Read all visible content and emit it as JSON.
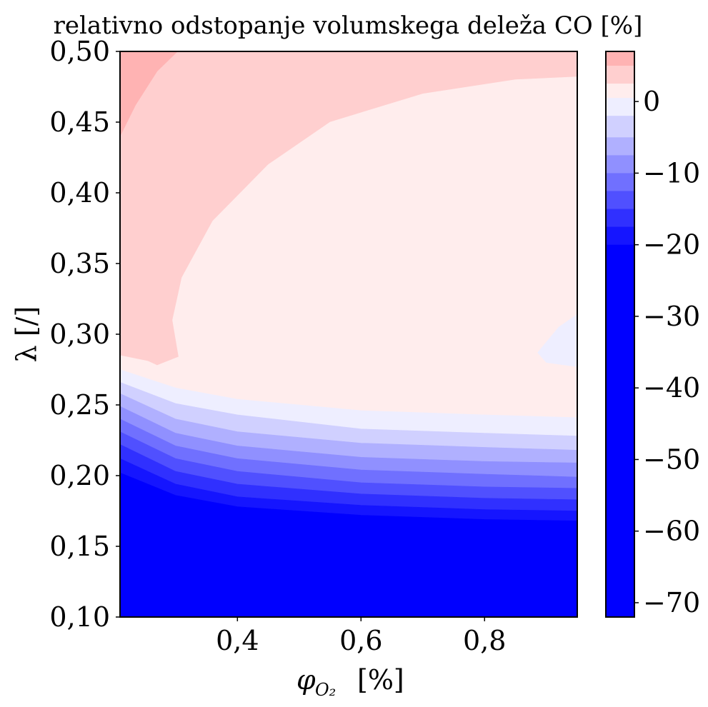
{
  "chart_data": {
    "type": "heatmap",
    "subtype": "filled-contour",
    "title": "relativno odstopanje volumskega deleža CO [%]",
    "xlabel": "φ_O₂ [%]",
    "xlabel_main": "φ",
    "xlabel_sub": "O₂",
    "xlabel_unit": "[%]",
    "ylabel": "λ [/]",
    "xlim": [
      0.21,
      0.95
    ],
    "ylim": [
      0.1,
      0.5
    ],
    "x_ticks": [
      0.4,
      0.6,
      0.8
    ],
    "x_tick_labels": [
      "0,4",
      "0,6",
      "0,8"
    ],
    "y_ticks": [
      0.1,
      0.15,
      0.2,
      0.25,
      0.3,
      0.35,
      0.4,
      0.45,
      0.5
    ],
    "y_tick_labels": [
      "0,10",
      "0,15",
      "0,20",
      "0,25",
      "0,30",
      "0,35",
      "0,40",
      "0,45",
      "0,50"
    ],
    "grid": false,
    "colorbar": {
      "position": "right",
      "range": [
        -72,
        7
      ],
      "ticks": [
        0,
        -10,
        -20,
        -30,
        -40,
        -50,
        -60,
        -70
      ],
      "tick_labels": [
        "0",
        "−10",
        "−20",
        "−30",
        "−40",
        "−50",
        "−60",
        "−70"
      ],
      "levels": [
        {
          "from": 5,
          "to": 7,
          "color": "#ffb3b3"
        },
        {
          "from": 2.5,
          "to": 5,
          "color": "#ffcfcf"
        },
        {
          "from": 0.5,
          "to": 2.5,
          "color": "#ffeded"
        },
        {
          "from": -2,
          "to": 0.5,
          "color": "#eeeeff"
        },
        {
          "from": -5,
          "to": -2,
          "color": "#d0d0ff"
        },
        {
          "from": -7.5,
          "to": -5,
          "color": "#b0b0ff"
        },
        {
          "from": -10,
          "to": -7.5,
          "color": "#9090ff"
        },
        {
          "from": -12.5,
          "to": -10,
          "color": "#7070ff"
        },
        {
          "from": -15,
          "to": -12.5,
          "color": "#5050ff"
        },
        {
          "from": -17.5,
          "to": -15,
          "color": "#3030ff"
        },
        {
          "from": -20,
          "to": -17.5,
          "color": "#1515ff"
        },
        {
          "from": -72,
          "to": -20,
          "color": "#0000ff"
        }
      ]
    },
    "regions": [
      {
        "name": "deviation 5..7 %",
        "color": "#ffb3b3",
        "points": [
          [
            0.21,
            0.5
          ],
          [
            0.303,
            0.5
          ],
          [
            0.27,
            0.486
          ],
          [
            0.235,
            0.462
          ],
          [
            0.21,
            0.44
          ]
        ]
      },
      {
        "name": "deviation 0.5..2.5 %",
        "color": "#ffeded",
        "points": [
          [
            0.95,
            0.482
          ],
          [
            0.85,
            0.48
          ],
          [
            0.7,
            0.47
          ],
          [
            0.55,
            0.45
          ],
          [
            0.45,
            0.42
          ],
          [
            0.36,
            0.38
          ],
          [
            0.31,
            0.34
          ],
          [
            0.295,
            0.31
          ],
          [
            0.305,
            0.284
          ],
          [
            0.27,
            0.278
          ],
          [
            0.255,
            0.281
          ],
          [
            0.21,
            0.285
          ],
          [
            0.21,
            0.275
          ],
          [
            0.3,
            0.262
          ],
          [
            0.4,
            0.254
          ],
          [
            0.6,
            0.246
          ],
          [
            0.8,
            0.243
          ],
          [
            0.95,
            0.241
          ]
        ]
      },
      {
        "name": "deviation −2..0.5 % (island)",
        "color": "#eeeeff",
        "points": [
          [
            0.95,
            0.314
          ],
          [
            0.92,
            0.305
          ],
          [
            0.886,
            0.287
          ],
          [
            0.9,
            0.28
          ],
          [
            0.95,
            0.277
          ]
        ]
      },
      {
        "name": "deviation −2..0.5 %",
        "color": "#eeeeff",
        "points": [
          [
            0.21,
            0.275
          ],
          [
            0.3,
            0.262
          ],
          [
            0.4,
            0.254
          ],
          [
            0.6,
            0.246
          ],
          [
            0.8,
            0.243
          ],
          [
            0.95,
            0.241
          ],
          [
            0.95,
            0.228
          ],
          [
            0.8,
            0.23
          ],
          [
            0.6,
            0.233
          ],
          [
            0.4,
            0.243
          ],
          [
            0.3,
            0.251
          ],
          [
            0.21,
            0.266
          ]
        ]
      },
      {
        "name": "deviation −5..−2 %",
        "color": "#d0d0ff",
        "points": [
          [
            0.21,
            0.266
          ],
          [
            0.3,
            0.251
          ],
          [
            0.4,
            0.243
          ],
          [
            0.6,
            0.233
          ],
          [
            0.8,
            0.23
          ],
          [
            0.95,
            0.228
          ],
          [
            0.95,
            0.218
          ],
          [
            0.8,
            0.22
          ],
          [
            0.6,
            0.223
          ],
          [
            0.4,
            0.231
          ],
          [
            0.3,
            0.24
          ],
          [
            0.21,
            0.258
          ]
        ]
      },
      {
        "name": "deviation −7.5..−5 %",
        "color": "#b0b0ff",
        "points": [
          [
            0.21,
            0.258
          ],
          [
            0.3,
            0.24
          ],
          [
            0.4,
            0.231
          ],
          [
            0.6,
            0.223
          ],
          [
            0.8,
            0.22
          ],
          [
            0.95,
            0.218
          ],
          [
            0.95,
            0.209
          ],
          [
            0.8,
            0.21
          ],
          [
            0.6,
            0.213
          ],
          [
            0.4,
            0.221
          ],
          [
            0.3,
            0.23
          ],
          [
            0.21,
            0.249
          ]
        ]
      },
      {
        "name": "deviation −10..−7.5 %",
        "color": "#9090ff",
        "points": [
          [
            0.21,
            0.249
          ],
          [
            0.3,
            0.23
          ],
          [
            0.4,
            0.221
          ],
          [
            0.6,
            0.213
          ],
          [
            0.8,
            0.21
          ],
          [
            0.95,
            0.209
          ],
          [
            0.95,
            0.199
          ],
          [
            0.8,
            0.201
          ],
          [
            0.6,
            0.204
          ],
          [
            0.4,
            0.212
          ],
          [
            0.3,
            0.221
          ],
          [
            0.21,
            0.24
          ]
        ]
      },
      {
        "name": "deviation −12.5..−10 %",
        "color": "#7070ff",
        "points": [
          [
            0.21,
            0.24
          ],
          [
            0.3,
            0.221
          ],
          [
            0.4,
            0.212
          ],
          [
            0.6,
            0.204
          ],
          [
            0.8,
            0.201
          ],
          [
            0.95,
            0.199
          ],
          [
            0.95,
            0.191
          ],
          [
            0.8,
            0.192
          ],
          [
            0.6,
            0.195
          ],
          [
            0.4,
            0.203
          ],
          [
            0.3,
            0.212
          ],
          [
            0.21,
            0.231
          ]
        ]
      },
      {
        "name": "deviation −15..−12.5 %",
        "color": "#5050ff",
        "points": [
          [
            0.21,
            0.231
          ],
          [
            0.3,
            0.212
          ],
          [
            0.4,
            0.203
          ],
          [
            0.6,
            0.195
          ],
          [
            0.8,
            0.192
          ],
          [
            0.95,
            0.191
          ],
          [
            0.95,
            0.183
          ],
          [
            0.8,
            0.184
          ],
          [
            0.6,
            0.187
          ],
          [
            0.4,
            0.194
          ],
          [
            0.3,
            0.203
          ],
          [
            0.21,
            0.222
          ]
        ]
      },
      {
        "name": "deviation −17.5..−15 %",
        "color": "#3030ff",
        "points": [
          [
            0.21,
            0.222
          ],
          [
            0.3,
            0.203
          ],
          [
            0.4,
            0.194
          ],
          [
            0.6,
            0.187
          ],
          [
            0.8,
            0.184
          ],
          [
            0.95,
            0.183
          ],
          [
            0.95,
            0.175
          ],
          [
            0.8,
            0.176
          ],
          [
            0.6,
            0.179
          ],
          [
            0.4,
            0.185
          ],
          [
            0.3,
            0.194
          ],
          [
            0.21,
            0.212
          ]
        ]
      },
      {
        "name": "deviation −20..−17.5 %",
        "color": "#1515ff",
        "points": [
          [
            0.21,
            0.212
          ],
          [
            0.3,
            0.194
          ],
          [
            0.4,
            0.185
          ],
          [
            0.6,
            0.179
          ],
          [
            0.8,
            0.176
          ],
          [
            0.95,
            0.175
          ],
          [
            0.95,
            0.168
          ],
          [
            0.8,
            0.169
          ],
          [
            0.6,
            0.172
          ],
          [
            0.4,
            0.178
          ],
          [
            0.3,
            0.186
          ],
          [
            0.21,
            0.202
          ]
        ]
      },
      {
        "name": "deviation below −20 %",
        "color": "#0000ff",
        "points": [
          [
            0.21,
            0.202
          ],
          [
            0.3,
            0.186
          ],
          [
            0.4,
            0.178
          ],
          [
            0.6,
            0.172
          ],
          [
            0.8,
            0.169
          ],
          [
            0.95,
            0.168
          ],
          [
            0.95,
            0.1
          ],
          [
            0.21,
            0.1
          ]
        ]
      }
    ],
    "background_region_color": "#ffcfcf"
  }
}
